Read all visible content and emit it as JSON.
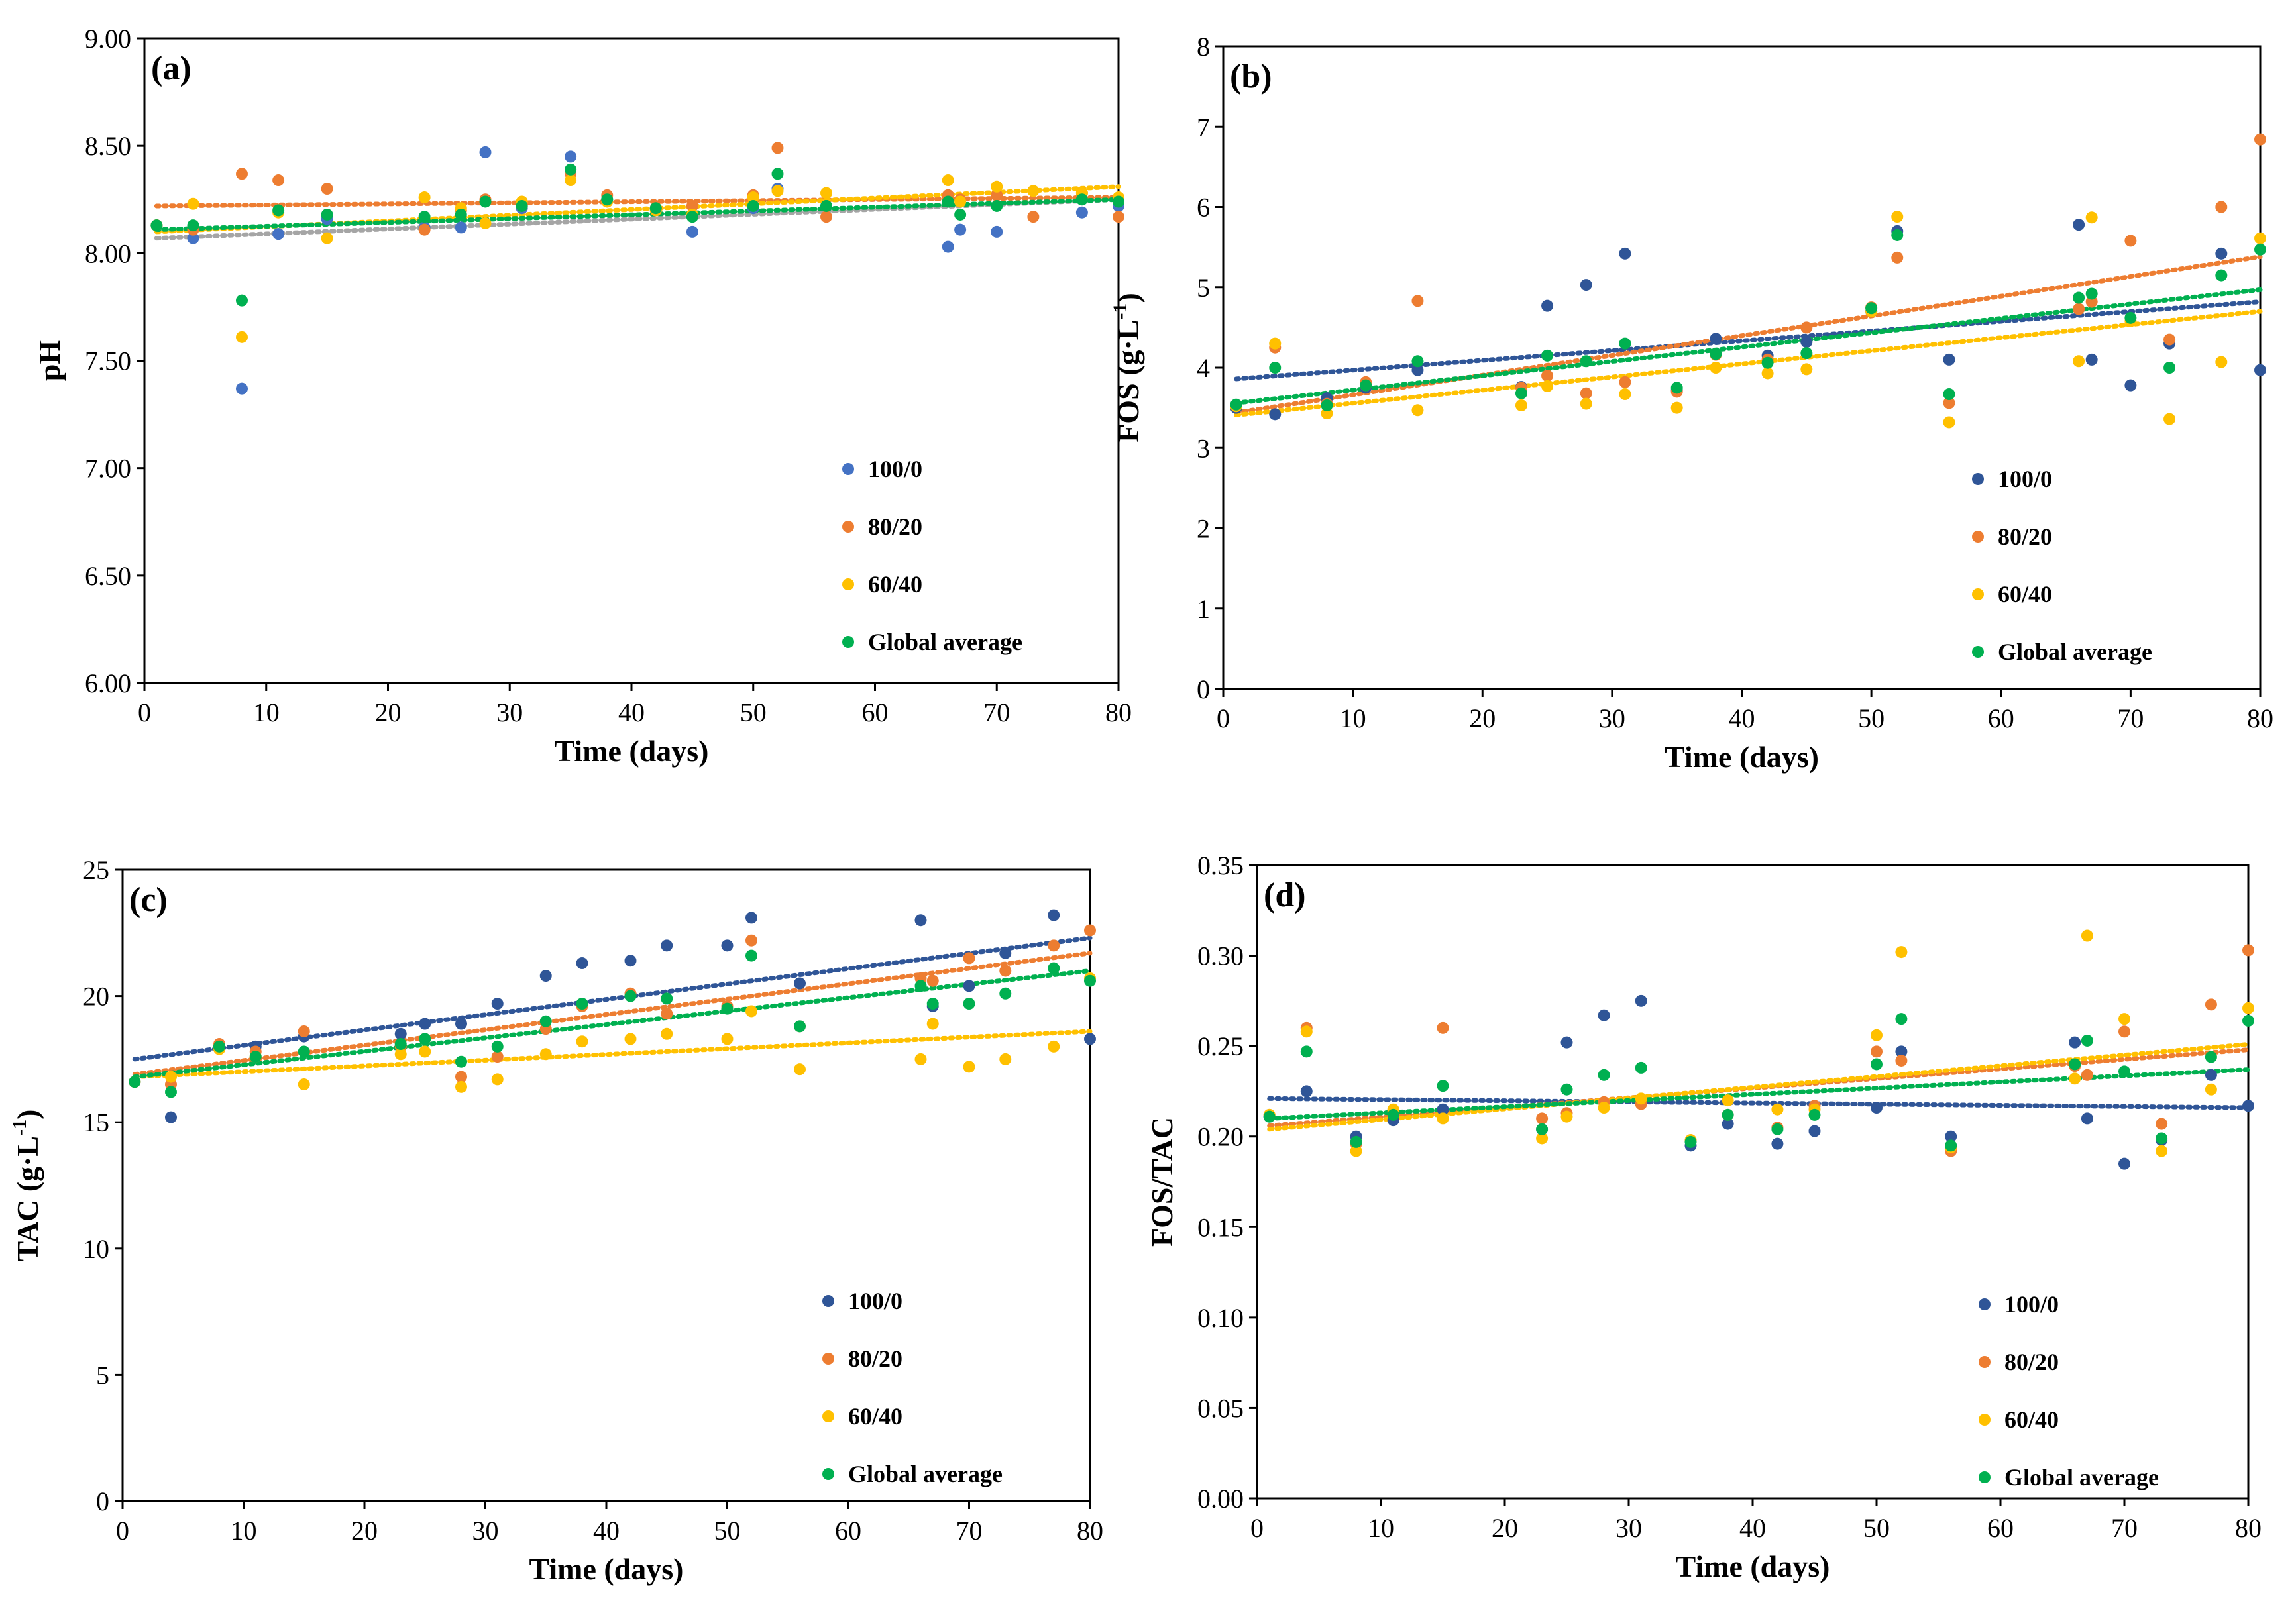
{
  "colors": {
    "s100_0": "#4472C4",
    "s80_20": "#ED7D31",
    "s60_40": "#FFC000",
    "global": "#00B050",
    "trend_blue": "#2F5597",
    "trend_gray": "#A5A5A5"
  },
  "chart_data": [
    {
      "panel": "(a)",
      "type": "scatter",
      "xlabel": "Time (days)",
      "ylabel": "pH",
      "xlim": [
        0,
        80
      ],
      "ylim": [
        6.0,
        9.0
      ],
      "xticks": [
        "0",
        "10",
        "20",
        "30",
        "40",
        "50",
        "60",
        "70",
        "80"
      ],
      "yticks": [
        "6.00",
        "6.50",
        "7.00",
        "7.50",
        "8.00",
        "8.50",
        "9.00"
      ],
      "legend_position": "bottom-right",
      "series": [
        {
          "name": "100/0",
          "color": "#4472C4",
          "x": [
            1,
            4,
            8,
            11,
            15,
            23,
            26,
            28,
            31,
            35,
            38,
            42,
            45,
            50,
            52,
            56,
            66,
            67,
            70,
            77,
            80
          ],
          "y": [
            8.13,
            8.07,
            7.37,
            8.09,
            8.16,
            8.12,
            8.12,
            8.47,
            8.21,
            8.45,
            8.25,
            8.2,
            8.1,
            8.21,
            8.3,
            8.22,
            8.03,
            8.11,
            8.1,
            8.19,
            8.22
          ],
          "trend": [
            [
              1,
              8.07
            ],
            [
              80,
              8.25
            ]
          ],
          "trend_color": "#A5A5A5"
        },
        {
          "name": "80/20",
          "color": "#ED7D31",
          "x": [
            1,
            4,
            8,
            11,
            15,
            23,
            26,
            28,
            31,
            35,
            38,
            42,
            45,
            50,
            52,
            56,
            66,
            67,
            70,
            73,
            77,
            80
          ],
          "y": [
            8.13,
            8.11,
            8.37,
            8.34,
            8.3,
            8.11,
            8.2,
            8.25,
            8.22,
            8.37,
            8.27,
            8.21,
            8.22,
            8.27,
            8.49,
            8.17,
            8.27,
            8.25,
            8.27,
            8.17,
            8.28,
            8.17
          ],
          "trend": [
            [
              1,
              8.22
            ],
            [
              80,
              8.26
            ]
          ],
          "trend_color": "#ED7D31"
        },
        {
          "name": "60/40",
          "color": "#FFC000",
          "x": [
            1,
            4,
            8,
            11,
            15,
            23,
            26,
            28,
            31,
            35,
            38,
            42,
            45,
            50,
            52,
            56,
            66,
            67,
            70,
            73,
            77,
            80
          ],
          "y": [
            8.13,
            8.23,
            7.61,
            8.19,
            8.07,
            8.26,
            8.21,
            8.14,
            8.24,
            8.34,
            8.24,
            8.2,
            8.18,
            8.26,
            8.29,
            8.28,
            8.34,
            8.24,
            8.31,
            8.29,
            8.28,
            8.26
          ],
          "trend": [
            [
              1,
              8.1
            ],
            [
              80,
              8.31
            ]
          ],
          "trend_color": "#FFC000"
        },
        {
          "name": "Global average",
          "color": "#00B050",
          "x": [
            1,
            4,
            8,
            11,
            15,
            23,
            26,
            28,
            31,
            35,
            38,
            42,
            45,
            50,
            52,
            56,
            66,
            67,
            70,
            77,
            80
          ],
          "y": [
            8.13,
            8.13,
            7.78,
            8.2,
            8.18,
            8.17,
            8.18,
            8.24,
            8.22,
            8.39,
            8.25,
            8.21,
            8.17,
            8.22,
            8.37,
            8.22,
            8.24,
            8.18,
            8.22,
            8.25,
            8.24
          ],
          "trend": [
            [
              1,
              8.11
            ],
            [
              80,
              8.25
            ]
          ],
          "trend_color": "#00B050"
        }
      ]
    },
    {
      "panel": "(b)",
      "type": "scatter",
      "xlabel": "Time (days)",
      "ylabel": "FOS (g·L",
      "ylabel_sup": "-1",
      "ylabel_end": ")",
      "xlim": [
        0,
        80
      ],
      "ylim": [
        0,
        8
      ],
      "xticks": [
        "0",
        "10",
        "20",
        "30",
        "40",
        "50",
        "60",
        "70",
        "80"
      ],
      "yticks": [
        "0",
        "1",
        "2",
        "3",
        "4",
        "5",
        "6",
        "7",
        "8"
      ],
      "legend_position": "bottom-right",
      "series": [
        {
          "name": "100/0",
          "color": "#2F5597",
          "x": [
            1,
            4,
            8,
            11,
            15,
            23,
            25,
            28,
            31,
            35,
            38,
            42,
            45,
            50,
            52,
            56,
            66,
            67,
            70,
            73,
            77,
            80
          ],
          "y": [
            3.5,
            3.42,
            3.62,
            3.75,
            3.97,
            3.76,
            4.77,
            5.03,
            5.42,
            3.72,
            4.36,
            4.15,
            4.32,
            4.7,
            5.7,
            4.1,
            5.78,
            4.1,
            3.78,
            4.3,
            5.42,
            3.97
          ],
          "trend": [
            [
              1,
              3.86
            ],
            [
              80,
              4.82
            ]
          ],
          "trend_color": "#2F5597"
        },
        {
          "name": "80/20",
          "color": "#ED7D31",
          "x": [
            1,
            4,
            8,
            11,
            15,
            23,
            25,
            28,
            31,
            35,
            38,
            42,
            45,
            50,
            52,
            56,
            66,
            67,
            70,
            73,
            77,
            80
          ],
          "y": [
            3.52,
            4.25,
            3.55,
            3.82,
            4.83,
            3.75,
            3.9,
            3.68,
            3.82,
            3.7,
            4.16,
            4.1,
            4.5,
            4.75,
            5.37,
            3.56,
            4.73,
            4.82,
            5.58,
            4.35,
            6.0,
            6.84
          ],
          "trend": [
            [
              1,
              3.44
            ],
            [
              80,
              5.38
            ]
          ],
          "trend_color": "#ED7D31"
        },
        {
          "name": "60/40",
          "color": "#FFC000",
          "x": [
            1,
            4,
            8,
            11,
            15,
            23,
            25,
            28,
            31,
            35,
            38,
            42,
            45,
            50,
            52,
            56,
            66,
            67,
            70,
            73,
            77,
            80
          ],
          "y": [
            3.52,
            4.3,
            3.43,
            3.78,
            3.47,
            3.53,
            3.77,
            3.55,
            3.67,
            3.5,
            4.0,
            3.93,
            3.98,
            4.7,
            5.88,
            3.32,
            4.08,
            5.87,
            4.58,
            3.36,
            4.07,
            5.61
          ],
          "trend": [
            [
              1,
              3.41
            ],
            [
              80,
              4.7
            ]
          ],
          "trend_color": "#FFC000"
        },
        {
          "name": "Global average",
          "color": "#00B050",
          "x": [
            1,
            4,
            8,
            11,
            15,
            23,
            25,
            28,
            31,
            35,
            38,
            42,
            45,
            50,
            52,
            56,
            66,
            67,
            70,
            73,
            77,
            80
          ],
          "y": [
            3.54,
            4.0,
            3.53,
            3.78,
            4.08,
            3.68,
            4.15,
            4.08,
            4.3,
            3.75,
            4.17,
            4.06,
            4.18,
            4.74,
            5.65,
            3.67,
            4.87,
            4.92,
            4.62,
            4.0,
            5.15,
            5.47
          ],
          "trend": [
            [
              1,
              3.56
            ],
            [
              80,
              4.97
            ]
          ],
          "trend_color": "#00B050"
        }
      ]
    },
    {
      "panel": "(c)",
      "type": "scatter",
      "xlabel": "Time (days)",
      "ylabel": "TAC (g·L",
      "ylabel_sup": "-1",
      "ylabel_end": ")",
      "xlim": [
        0,
        80
      ],
      "ylim": [
        0,
        25
      ],
      "xticks": [
        "0",
        "10",
        "20",
        "30",
        "40",
        "50",
        "60",
        "70",
        "80"
      ],
      "yticks": [
        "0",
        "5",
        "10",
        "15",
        "20",
        "25"
      ],
      "legend_position": "bottom-right",
      "series": [
        {
          "name": "100/0",
          "color": "#2F5597",
          "x": [
            1,
            4,
            8,
            11,
            15,
            23,
            25,
            28,
            31,
            35,
            38,
            42,
            45,
            50,
            52,
            56,
            66,
            67,
            70,
            73,
            77,
            80
          ],
          "y": [
            16.6,
            15.2,
            18.0,
            18.0,
            18.4,
            18.5,
            18.9,
            18.9,
            19.7,
            20.8,
            21.3,
            21.4,
            22.0,
            22.0,
            23.1,
            20.5,
            23.0,
            19.6,
            20.4,
            21.7,
            23.2,
            18.3
          ],
          "trend": [
            [
              1,
              17.5
            ],
            [
              80,
              22.3
            ]
          ],
          "trend_color": "#2F5597"
        },
        {
          "name": "80/20",
          "color": "#ED7D31",
          "x": [
            1,
            4,
            8,
            11,
            15,
            23,
            25,
            28,
            31,
            35,
            38,
            42,
            45,
            50,
            52,
            56,
            66,
            67,
            70,
            73,
            77,
            80
          ],
          "y": [
            16.6,
            16.5,
            18.1,
            17.8,
            18.6,
            18.0,
            18.3,
            16.8,
            17.6,
            18.7,
            19.6,
            20.1,
            19.3,
            19.6,
            22.2,
            18.8,
            20.7,
            20.6,
            21.5,
            21.0,
            22.0,
            22.6
          ],
          "trend": [
            [
              1,
              16.9
            ],
            [
              80,
              21.7
            ]
          ],
          "trend_color": "#ED7D31"
        },
        {
          "name": "60/40",
          "color": "#FFC000",
          "x": [
            1,
            4,
            8,
            11,
            15,
            23,
            25,
            28,
            31,
            35,
            38,
            42,
            45,
            50,
            52,
            56,
            66,
            67,
            70,
            73,
            77,
            80
          ],
          "y": [
            16.6,
            16.8,
            17.9,
            17.6,
            16.5,
            17.7,
            17.8,
            16.4,
            16.7,
            17.7,
            18.2,
            18.3,
            18.5,
            18.3,
            19.4,
            17.1,
            17.5,
            18.9,
            17.2,
            17.5,
            18.0,
            20.7
          ],
          "trend": [
            [
              1,
              16.8
            ],
            [
              80,
              18.6
            ]
          ],
          "trend_color": "#FFC000"
        },
        {
          "name": "Global average",
          "color": "#00B050",
          "x": [
            1,
            4,
            8,
            11,
            15,
            23,
            25,
            28,
            31,
            35,
            38,
            42,
            45,
            50,
            52,
            56,
            66,
            67,
            70,
            73,
            77,
            80
          ],
          "y": [
            16.6,
            16.2,
            18.0,
            17.6,
            17.8,
            18.1,
            18.3,
            17.4,
            18.0,
            19.0,
            19.7,
            20.0,
            19.9,
            19.5,
            21.6,
            18.8,
            20.4,
            19.7,
            19.7,
            20.1,
            21.1,
            20.6
          ],
          "trend": [
            [
              1,
              16.8
            ],
            [
              80,
              21.0
            ]
          ],
          "trend_color": "#00B050"
        }
      ]
    },
    {
      "panel": "(d)",
      "type": "scatter",
      "xlabel": "Time (days)",
      "ylabel": "FOS/TAC",
      "xlim": [
        0,
        80
      ],
      "ylim": [
        0,
        0.35
      ],
      "xticks": [
        "0",
        "10",
        "20",
        "30",
        "40",
        "50",
        "60",
        "70",
        "80"
      ],
      "yticks": [
        "0.00",
        "0.05",
        "0.10",
        "0.15",
        "0.20",
        "0.25",
        "0.30",
        "0.35"
      ],
      "legend_position": "bottom-right",
      "series": [
        {
          "name": "100/0",
          "color": "#2F5597",
          "x": [
            1,
            4,
            8,
            11,
            15,
            23,
            25,
            28,
            31,
            35,
            38,
            42,
            45,
            50,
            52,
            56,
            66,
            67,
            70,
            73,
            77,
            80
          ],
          "y": [
            0.211,
            0.225,
            0.2,
            0.209,
            0.215,
            0.204,
            0.252,
            0.267,
            0.275,
            0.195,
            0.207,
            0.196,
            0.203,
            0.216,
            0.247,
            0.2,
            0.252,
            0.21,
            0.185,
            0.198,
            0.234,
            0.217
          ],
          "trend": [
            [
              1,
              0.221
            ],
            [
              80,
              0.216
            ]
          ],
          "trend_color": "#2F5597"
        },
        {
          "name": "80/20",
          "color": "#ED7D31",
          "x": [
            1,
            4,
            8,
            11,
            15,
            23,
            25,
            28,
            31,
            35,
            38,
            42,
            45,
            50,
            52,
            56,
            66,
            67,
            70,
            73,
            77,
            80
          ],
          "y": [
            0.212,
            0.26,
            0.196,
            0.214,
            0.26,
            0.21,
            0.213,
            0.219,
            0.218,
            0.198,
            0.212,
            0.205,
            0.217,
            0.247,
            0.242,
            0.192,
            0.239,
            0.234,
            0.258,
            0.207,
            0.273,
            0.303
          ],
          "trend": [
            [
              1,
              0.206
            ],
            [
              80,
              0.248
            ]
          ],
          "trend_color": "#ED7D31"
        },
        {
          "name": "60/40",
          "color": "#FFC000",
          "x": [
            1,
            4,
            8,
            11,
            15,
            23,
            25,
            28,
            31,
            35,
            38,
            42,
            45,
            50,
            52,
            56,
            66,
            67,
            70,
            73,
            77,
            80
          ],
          "y": [
            0.212,
            0.258,
            0.192,
            0.215,
            0.21,
            0.199,
            0.211,
            0.216,
            0.221,
            0.198,
            0.22,
            0.215,
            0.215,
            0.256,
            0.302,
            0.194,
            0.232,
            0.311,
            0.265,
            0.192,
            0.226,
            0.271
          ],
          "trend": [
            [
              1,
              0.204
            ],
            [
              80,
              0.251
            ]
          ],
          "trend_color": "#FFC000"
        },
        {
          "name": "Global average",
          "color": "#00B050",
          "x": [
            1,
            4,
            8,
            11,
            15,
            23,
            25,
            28,
            31,
            35,
            38,
            42,
            45,
            50,
            52,
            56,
            66,
            67,
            70,
            73,
            77,
            80
          ],
          "y": [
            0.211,
            0.247,
            0.197,
            0.212,
            0.228,
            0.204,
            0.226,
            0.234,
            0.238,
            0.197,
            0.212,
            0.204,
            0.212,
            0.24,
            0.265,
            0.195,
            0.24,
            0.253,
            0.236,
            0.199,
            0.244,
            0.264
          ],
          "trend": [
            [
              1,
              0.21
            ],
            [
              80,
              0.237
            ]
          ],
          "trend_color": "#00B050"
        }
      ]
    }
  ]
}
